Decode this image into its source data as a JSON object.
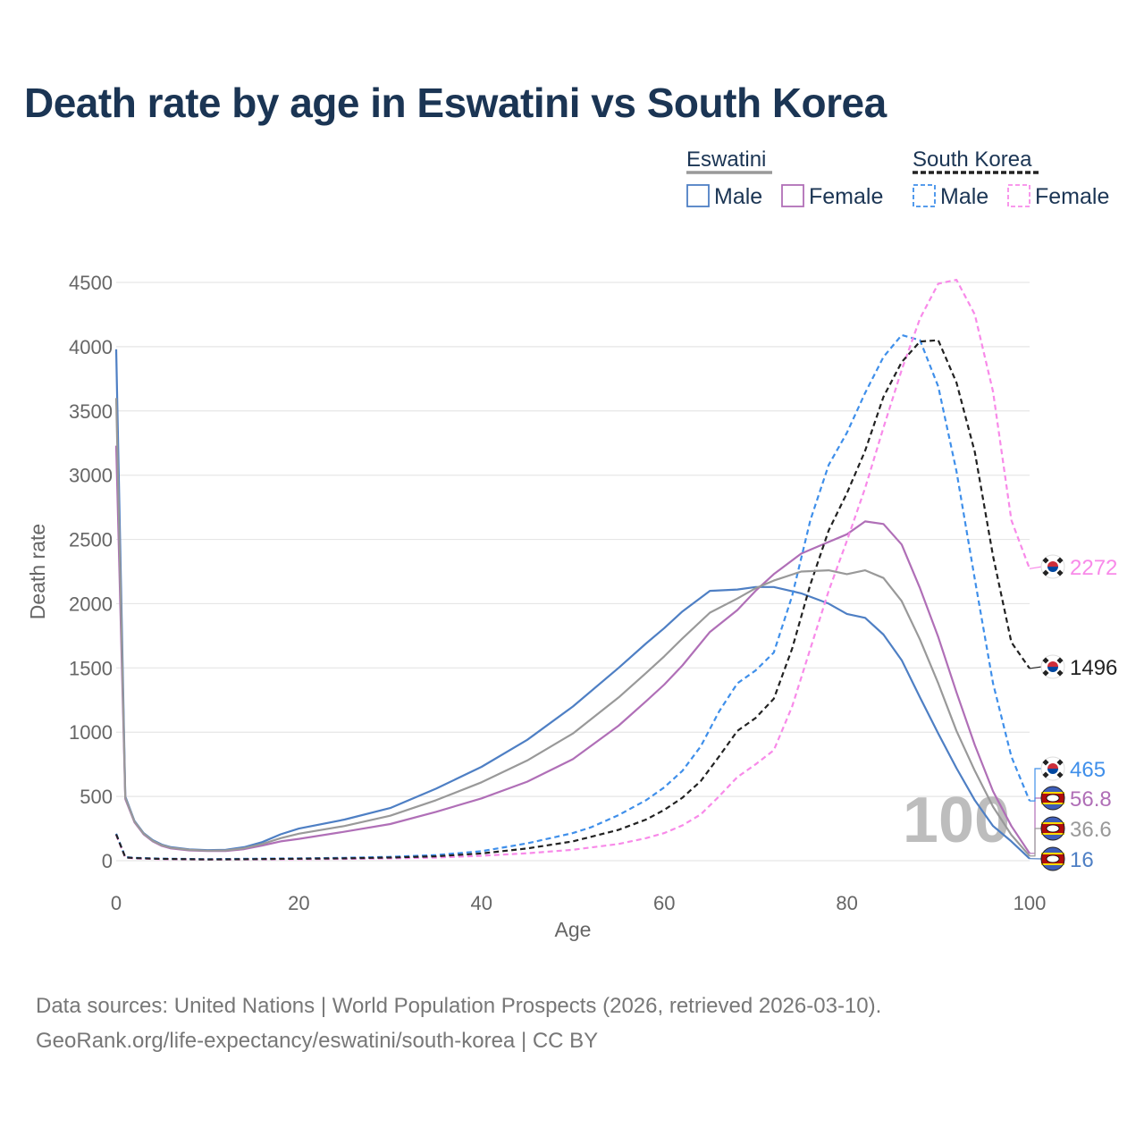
{
  "title": "Death rate by age in Eswatini vs South Korea",
  "legend": {
    "groups": [
      {
        "name": "Eswatini",
        "underline_color": "#999999",
        "underline_dashed": false,
        "items": [
          {
            "label": "Male",
            "color": "#4e7fc4",
            "dashed": false
          },
          {
            "label": "Female",
            "color": "#b06fb7",
            "dashed": false
          }
        ]
      },
      {
        "name": "South Korea",
        "underline_color": "#222222",
        "underline_dashed": true,
        "items": [
          {
            "label": "Male",
            "color": "#3f8fea",
            "dashed": true
          },
          {
            "label": "Female",
            "color": "#f88ae9",
            "dashed": true
          }
        ]
      }
    ]
  },
  "footer": {
    "line1": "Data sources: United Nations | World Population Prospects (2026, retrieved 2026-03-10).",
    "line2": "GeoRank.org/life-expectancy/eswatini/south-korea | CC BY"
  },
  "chart_data": {
    "type": "line",
    "xlabel": "Age",
    "ylabel": "Death rate",
    "xlim": [
      0,
      100
    ],
    "ylim": [
      0,
      4500
    ],
    "xticks": [
      0,
      20,
      40,
      60,
      80,
      100
    ],
    "yticks": [
      0,
      500,
      1000,
      1500,
      2000,
      2500,
      3000,
      3500,
      4000,
      4500
    ],
    "grid": true,
    "watermark": "100",
    "series": [
      {
        "name": "Eswatini Male",
        "color": "#4e7fc4",
        "dashed": false,
        "end_label": "16",
        "x": [
          0,
          1,
          2,
          3,
          4,
          5,
          6,
          8,
          10,
          12,
          14,
          16,
          18,
          20,
          25,
          30,
          35,
          40,
          45,
          50,
          55,
          58,
          60,
          62,
          65,
          68,
          70,
          72,
          75,
          78,
          80,
          82,
          84,
          86,
          88,
          90,
          92,
          94,
          96,
          98,
          100
        ],
        "y": [
          3980,
          500,
          310,
          215,
          160,
          125,
          105,
          88,
          82,
          85,
          105,
          145,
          205,
          250,
          320,
          410,
          560,
          730,
          940,
          1200,
          1500,
          1690,
          1810,
          1940,
          2100,
          2110,
          2130,
          2130,
          2080,
          2000,
          1920,
          1890,
          1760,
          1560,
          1270,
          990,
          720,
          470,
          270,
          150,
          16
        ]
      },
      {
        "name": "Eswatini Female",
        "color": "#b06fb7",
        "dashed": false,
        "end_label": "56.8",
        "x": [
          0,
          1,
          2,
          3,
          4,
          5,
          6,
          8,
          10,
          12,
          14,
          16,
          18,
          20,
          25,
          30,
          35,
          40,
          45,
          50,
          55,
          58,
          60,
          62,
          65,
          68,
          70,
          72,
          75,
          78,
          80,
          82,
          84,
          86,
          88,
          90,
          92,
          94,
          96,
          98,
          100
        ],
        "y": [
          3230,
          480,
          300,
          205,
          150,
          115,
          95,
          80,
          75,
          75,
          90,
          118,
          150,
          170,
          225,
          285,
          380,
          485,
          615,
          790,
          1050,
          1240,
          1370,
          1520,
          1780,
          1950,
          2100,
          2230,
          2390,
          2480,
          2540,
          2640,
          2620,
          2460,
          2120,
          1740,
          1310,
          900,
          540,
          270,
          56.8
        ]
      },
      {
        "name": "South Korea Male",
        "color": "#3f8fea",
        "dashed": true,
        "end_label": "465",
        "x": [
          0,
          1,
          2,
          5,
          10,
          15,
          20,
          25,
          30,
          35,
          40,
          45,
          50,
          52,
          55,
          58,
          60,
          62,
          64,
          66,
          68,
          70,
          72,
          74,
          76,
          78,
          80,
          82,
          84,
          86,
          88,
          90,
          92,
          94,
          96,
          98,
          100
        ],
        "y": [
          210,
          28,
          22,
          16,
          12,
          15,
          18,
          22,
          30,
          44,
          74,
          135,
          215,
          260,
          355,
          470,
          570,
          700,
          890,
          1160,
          1380,
          1480,
          1620,
          2060,
          2650,
          3080,
          3330,
          3640,
          3920,
          4090,
          4050,
          3690,
          3030,
          2190,
          1380,
          810,
          465
        ]
      },
      {
        "name": "South Korea Female",
        "color": "#f88ae9",
        "dashed": true,
        "end_label": "2272",
        "x": [
          0,
          1,
          2,
          5,
          10,
          15,
          20,
          25,
          30,
          35,
          40,
          45,
          50,
          55,
          58,
          60,
          62,
          64,
          66,
          68,
          70,
          72,
          74,
          76,
          78,
          80,
          82,
          84,
          86,
          88,
          90,
          92,
          94,
          96,
          98,
          100
        ],
        "y": [
          200,
          24,
          18,
          12,
          9,
          10,
          12,
          14,
          18,
          24,
          38,
          58,
          85,
          130,
          175,
          215,
          275,
          360,
          500,
          650,
          750,
          860,
          1200,
          1650,
          2100,
          2490,
          2900,
          3370,
          3820,
          4220,
          4490,
          4520,
          4250,
          3650,
          2650,
          2272
        ]
      },
      {
        "name": "South Korea Both",
        "color": "#222222",
        "dashed": true,
        "end_label": "1496",
        "x": [
          0,
          1,
          2,
          5,
          10,
          15,
          20,
          25,
          30,
          35,
          40,
          45,
          50,
          55,
          58,
          60,
          62,
          64,
          66,
          68,
          70,
          72,
          74,
          76,
          78,
          80,
          82,
          84,
          86,
          88,
          90,
          92,
          94,
          96,
          98,
          100
        ],
        "y": [
          205,
          26,
          20,
          14,
          10,
          12,
          15,
          18,
          24,
          34,
          56,
          95,
          150,
          240,
          320,
          395,
          490,
          620,
          810,
          1010,
          1110,
          1260,
          1650,
          2150,
          2570,
          2860,
          3190,
          3610,
          3880,
          4040,
          4050,
          3720,
          3180,
          2370,
          1700,
          1496
        ]
      },
      {
        "name": "Eswatini Both",
        "color": "#999999",
        "dashed": false,
        "end_label": "36.6",
        "x": [
          0,
          1,
          2,
          3,
          4,
          5,
          6,
          8,
          10,
          12,
          14,
          16,
          18,
          20,
          25,
          30,
          35,
          40,
          45,
          50,
          55,
          58,
          60,
          62,
          65,
          68,
          70,
          72,
          75,
          78,
          80,
          82,
          84,
          86,
          88,
          90,
          92,
          94,
          96,
          98,
          100
        ],
        "y": [
          3600,
          490,
          305,
          210,
          155,
          120,
          100,
          84,
          78,
          80,
          97,
          130,
          175,
          210,
          270,
          350,
          470,
          610,
          780,
          990,
          1270,
          1460,
          1590,
          1730,
          1930,
          2040,
          2120,
          2180,
          2250,
          2260,
          2230,
          2260,
          2200,
          2020,
          1720,
          1380,
          1010,
          700,
          420,
          200,
          36.6
        ]
      }
    ]
  }
}
